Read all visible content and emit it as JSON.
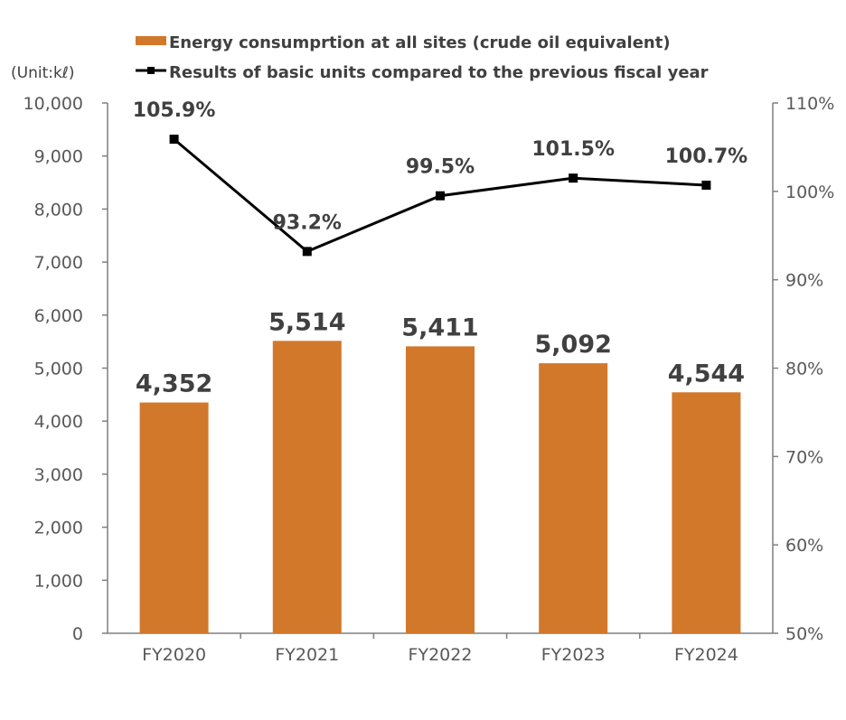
{
  "chart_data": {
    "type": "bar",
    "unit_label": "(Unit:kℓ)",
    "categories": [
      "FY2020",
      "FY2021",
      "FY2022",
      "FY2023",
      "FY2024"
    ],
    "series": [
      {
        "name": "Energy consumprtion at all sites (crude oil equivalent)",
        "type": "bar",
        "axis": "left",
        "color": "#D2782A",
        "values": [
          4352,
          5514,
          5411,
          5092,
          4544
        ],
        "labels": [
          "4,352",
          "5,514",
          "5,411",
          "5,092",
          "4,544"
        ]
      },
      {
        "name": "Results of basic units compared to the previous fiscal year",
        "type": "line",
        "axis": "right",
        "color": "#000000",
        "values": [
          105.9,
          93.2,
          99.5,
          101.5,
          100.7
        ],
        "labels": [
          "105.9%",
          "93.2%",
          "99.5%",
          "101.5%",
          "100.7%"
        ]
      }
    ],
    "y_left": {
      "min": 0,
      "max": 10000,
      "ticks": [
        "0",
        "1,000",
        "2,000",
        "3,000",
        "4,000",
        "5,000",
        "6,000",
        "7,000",
        "8,000",
        "9,000",
        "10,000"
      ]
    },
    "y_right": {
      "min": 50,
      "max": 110,
      "ticks": [
        "50%",
        "60%",
        "70%",
        "80%",
        "90%",
        "100%",
        "110%"
      ]
    },
    "legend_position": "top-center",
    "grid": false
  }
}
